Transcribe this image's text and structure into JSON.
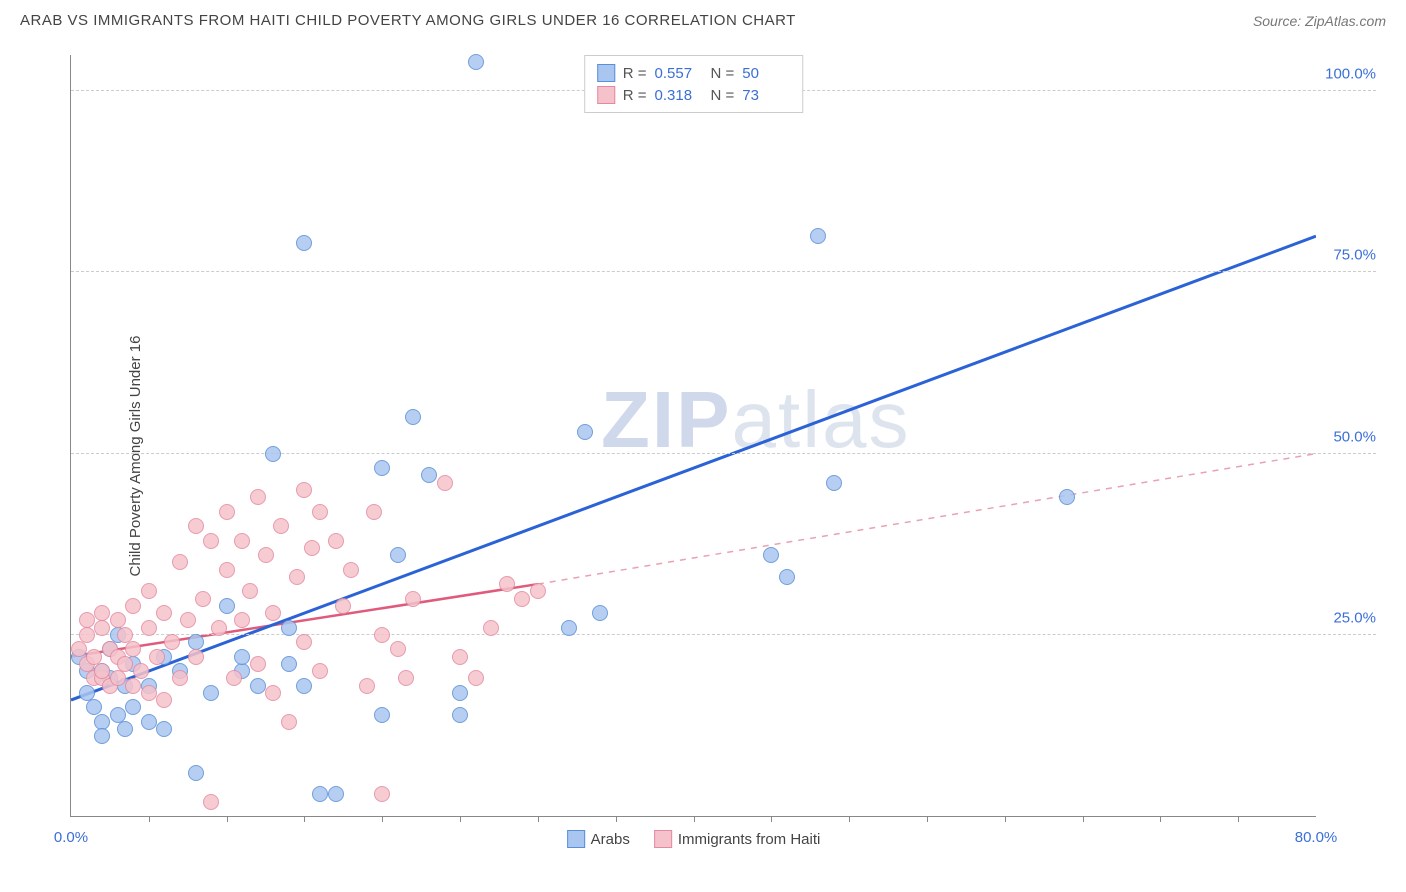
{
  "title": "ARAB VS IMMIGRANTS FROM HAITI CHILD POVERTY AMONG GIRLS UNDER 16 CORRELATION CHART",
  "source": "Source: ZipAtlas.com",
  "ylabel": "Child Poverty Among Girls Under 16",
  "watermark_a": "ZIP",
  "watermark_b": "atlas",
  "chart": {
    "type": "scatter",
    "xlim": [
      0,
      80
    ],
    "ylim": [
      0,
      105
    ],
    "x_origin_label": "0.0%",
    "x_max_label": "80.0%",
    "x_ticks_minor": [
      5,
      10,
      15,
      20,
      25,
      30,
      35,
      40,
      45,
      50,
      55,
      60,
      65,
      70,
      75
    ],
    "y_ticks": [
      {
        "v": 25,
        "label": "25.0%"
      },
      {
        "v": 50,
        "label": "50.0%"
      },
      {
        "v": 75,
        "label": "75.0%"
      },
      {
        "v": 100,
        "label": "100.0%"
      }
    ],
    "background_color": "#ffffff",
    "grid_color": "#cccccc",
    "axis_color": "#888888",
    "label_color": "#3b6fd8",
    "point_radius": 8,
    "point_border": 1,
    "series": [
      {
        "name": "Arabs",
        "legend_label": "Arabs",
        "color_fill": "#a9c6f0",
        "color_stroke": "#5a8fd8",
        "r_label": "R =",
        "r_value": "0.557",
        "n_label": "N =",
        "n_value": "50",
        "trend": {
          "x1": 0,
          "y1": 16,
          "x2": 80,
          "y2": 80,
          "stroke": "#2b63d6",
          "width": 3,
          "dash": "none"
        },
        "points": [
          [
            0.5,
            22
          ],
          [
            1,
            20
          ],
          [
            1,
            17
          ],
          [
            1.5,
            15
          ],
          [
            2,
            13
          ],
          [
            2,
            11
          ],
          [
            2,
            20
          ],
          [
            2.5,
            19
          ],
          [
            2.5,
            23
          ],
          [
            3,
            14
          ],
          [
            3,
            25
          ],
          [
            3.5,
            12
          ],
          [
            3.5,
            18
          ],
          [
            4,
            15
          ],
          [
            4,
            21
          ],
          [
            5,
            18
          ],
          [
            5,
            13
          ],
          [
            6,
            22
          ],
          [
            6,
            12
          ],
          [
            7,
            20
          ],
          [
            8,
            6
          ],
          [
            8,
            24
          ],
          [
            9,
            17
          ],
          [
            10,
            29
          ],
          [
            11,
            20
          ],
          [
            11,
            22
          ],
          [
            12,
            18
          ],
          [
            13,
            50
          ],
          [
            14,
            26
          ],
          [
            14,
            21
          ],
          [
            15,
            79
          ],
          [
            15,
            18
          ],
          [
            16,
            3
          ],
          [
            17,
            3
          ],
          [
            20,
            14
          ],
          [
            20,
            48
          ],
          [
            21,
            36
          ],
          [
            22,
            55
          ],
          [
            23,
            47
          ],
          [
            25,
            17
          ],
          [
            25,
            14
          ],
          [
            26,
            104
          ],
          [
            32,
            26
          ],
          [
            33,
            53
          ],
          [
            34,
            28
          ],
          [
            45,
            36
          ],
          [
            46,
            33
          ],
          [
            48,
            80
          ],
          [
            49,
            46
          ],
          [
            64,
            44
          ]
        ]
      },
      {
        "name": "Immigrants from Haiti",
        "legend_label": "Immigrants from Haiti",
        "color_fill": "#f5c2cb",
        "color_stroke": "#e48aa0",
        "r_label": "R =",
        "r_value": "0.318",
        "n_label": "N =",
        "n_value": "73",
        "trend_solid": {
          "x1": 0,
          "y1": 22,
          "x2": 30,
          "y2": 32,
          "stroke": "#e05a7c",
          "width": 2.5
        },
        "trend_dash": {
          "x1": 30,
          "y1": 32,
          "x2": 80,
          "y2": 50,
          "stroke": "#e8a2b2",
          "width": 1.5,
          "dash": "6 6"
        },
        "points": [
          [
            0.5,
            23
          ],
          [
            1,
            21
          ],
          [
            1,
            25
          ],
          [
            1,
            27
          ],
          [
            1.5,
            19
          ],
          [
            1.5,
            22
          ],
          [
            2,
            26
          ],
          [
            2,
            19
          ],
          [
            2,
            28
          ],
          [
            2,
            20
          ],
          [
            2.5,
            23
          ],
          [
            2.5,
            18
          ],
          [
            3,
            27
          ],
          [
            3,
            22
          ],
          [
            3,
            19
          ],
          [
            3.5,
            25
          ],
          [
            3.5,
            21
          ],
          [
            4,
            29
          ],
          [
            4,
            18
          ],
          [
            4,
            23
          ],
          [
            4.5,
            20
          ],
          [
            5,
            26
          ],
          [
            5,
            31
          ],
          [
            5,
            17
          ],
          [
            5.5,
            22
          ],
          [
            6,
            28
          ],
          [
            6,
            16
          ],
          [
            6.5,
            24
          ],
          [
            7,
            35
          ],
          [
            7,
            19
          ],
          [
            7.5,
            27
          ],
          [
            8,
            40
          ],
          [
            8,
            22
          ],
          [
            8.5,
            30
          ],
          [
            9,
            38
          ],
          [
            9,
            2
          ],
          [
            9.5,
            26
          ],
          [
            10,
            42
          ],
          [
            10,
            34
          ],
          [
            10.5,
            19
          ],
          [
            11,
            38
          ],
          [
            11,
            27
          ],
          [
            11.5,
            31
          ],
          [
            12,
            44
          ],
          [
            12,
            21
          ],
          [
            12.5,
            36
          ],
          [
            13,
            28
          ],
          [
            13,
            17
          ],
          [
            13.5,
            40
          ],
          [
            14,
            13
          ],
          [
            14.5,
            33
          ],
          [
            15,
            45
          ],
          [
            15,
            24
          ],
          [
            15.5,
            37
          ],
          [
            16,
            42
          ],
          [
            16,
            20
          ],
          [
            17,
            38
          ],
          [
            17.5,
            29
          ],
          [
            18,
            34
          ],
          [
            19,
            18
          ],
          [
            19.5,
            42
          ],
          [
            20,
            25
          ],
          [
            20,
            3
          ],
          [
            21,
            23
          ],
          [
            21.5,
            19
          ],
          [
            22,
            30
          ],
          [
            24,
            46
          ],
          [
            25,
            22
          ],
          [
            26,
            19
          ],
          [
            27,
            26
          ],
          [
            28,
            32
          ],
          [
            29,
            30
          ],
          [
            30,
            31
          ]
        ]
      }
    ]
  }
}
